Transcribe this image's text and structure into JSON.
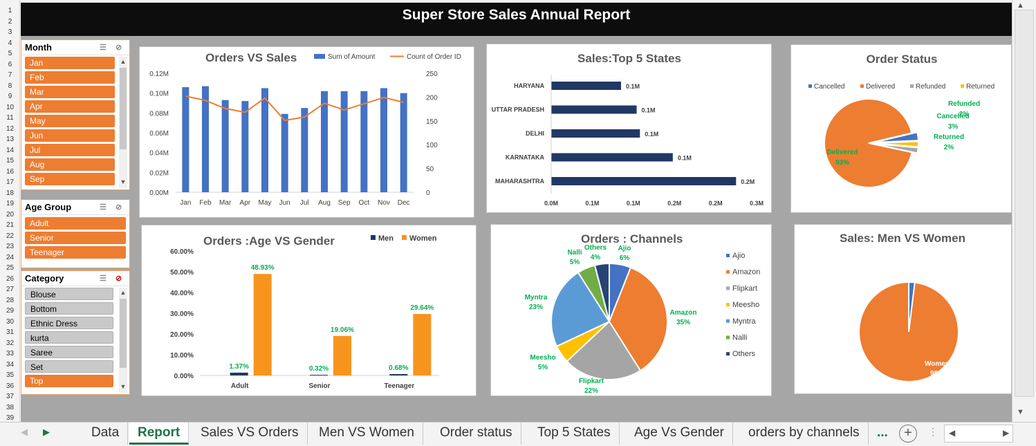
{
  "banner_title": "Super Store Sales Annual Report",
  "row_numbers": [
    "1",
    "2",
    "3",
    "4",
    "5",
    "6",
    "7",
    "8",
    "9",
    "10",
    "11",
    "12",
    "13",
    "14",
    "15",
    "16",
    "17",
    "18",
    "19",
    "20",
    "21",
    "22",
    "23",
    "24",
    "25",
    "26",
    "27",
    "28",
    "29",
    "30",
    "31",
    "32",
    "33",
    "34",
    "35",
    "36",
    "37",
    "38",
    "39"
  ],
  "slicers": {
    "month": {
      "title": "Month",
      "items": [
        "Jan",
        "Feb",
        "Mar",
        "Apr",
        "May",
        "Jun",
        "Jul",
        "Aug",
        "Sep"
      ]
    },
    "age": {
      "title": "Age Group",
      "items": [
        "Adult",
        "Senior",
        "Teenager"
      ]
    },
    "category": {
      "title": "Category",
      "items": [
        "Blouse",
        "Bottom",
        "Ethnic Dress",
        "kurta",
        "Saree",
        "Set",
        "Top"
      ],
      "selected": "Top"
    }
  },
  "tabs": [
    "Data",
    "Report",
    "Sales VS Orders",
    "Men VS Women",
    "Order status",
    "Top 5 States",
    "Age Vs Gender",
    "orders by channels",
    "..."
  ],
  "active_tab": "Report",
  "colors": {
    "orange": "#ed7d31",
    "blue": "#4472c4",
    "navy": "#203864",
    "gold": "#f7941d",
    "green": "#00b050",
    "excel_green": "#217346"
  },
  "chart_data": [
    {
      "id": "orders_vs_sales",
      "type": "bar+line",
      "title": "Orders VS Sales",
      "legend": [
        "Sum of Amount",
        "Count of Order ID"
      ],
      "categories": [
        "Jan",
        "Feb",
        "Mar",
        "Apr",
        "May",
        "Jun",
        "Jul",
        "Aug",
        "Sep",
        "Oct",
        "Nov",
        "Dec"
      ],
      "bar_values": [
        0.106,
        0.107,
        0.093,
        0.092,
        0.105,
        0.079,
        0.085,
        0.102,
        0.102,
        0.102,
        0.105,
        0.1
      ],
      "line_values": [
        202,
        193,
        176,
        168,
        198,
        151,
        158,
        187,
        173,
        186,
        199,
        189
      ],
      "y_left_ticks": [
        "0.00M",
        "0.02M",
        "0.04M",
        "0.06M",
        "0.08M",
        "0.10M",
        "0.12M"
      ],
      "y_right_ticks": [
        "0",
        "50",
        "100",
        "150",
        "200",
        "250"
      ],
      "ylim_left": [
        0,
        0.12
      ],
      "ylim_right": [
        0,
        250
      ]
    },
    {
      "id": "top5_states",
      "type": "hbar",
      "title": "Sales:Top 5 States",
      "categories": [
        "HARYANA",
        "UTTAR PRADESH",
        "DELHI",
        "KARNATAKA",
        "MAHARASHTRA"
      ],
      "values": [
        0.085,
        0.104,
        0.108,
        0.148,
        0.225
      ],
      "labels": [
        "0.1M",
        "0.1M",
        "0.1M",
        "0.1M",
        "0.2M"
      ],
      "x_ticks": [
        "0.0M",
        "0.1M",
        "0.1M",
        "0.2M",
        "0.2M",
        "0.3M"
      ],
      "xlim": [
        0,
        0.25
      ]
    },
    {
      "id": "order_status",
      "type": "pie",
      "title": "Order Status",
      "legend": [
        "Cancelled",
        "Delivered",
        "Refunded",
        "Returned"
      ],
      "slices": [
        {
          "name": "Delivered",
          "value": 93,
          "color": "#ed7d31",
          "label": "Delivered",
          "pct": "93%"
        },
        {
          "name": "Cancelled",
          "value": 3,
          "color": "#4472c4",
          "label": "Cancelled",
          "pct": "3%"
        },
        {
          "name": "Returned",
          "value": 2,
          "color": "#ffc000",
          "label": "Returned",
          "pct": "2%"
        },
        {
          "name": "Refunded",
          "value": 2,
          "color": "#a5a5a5",
          "label": "Refunded",
          "pct": "2%"
        }
      ]
    },
    {
      "id": "age_vs_gender",
      "type": "bar",
      "title": "Orders :Age VS Gender",
      "legend": [
        "Men",
        "Women"
      ],
      "categories": [
        "Adult",
        "Senior",
        "Teenager"
      ],
      "series": [
        {
          "name": "Men",
          "values": [
            1.37,
            0.32,
            0.68
          ],
          "labels": [
            "1.37%",
            "0.32%",
            "0.68%"
          ]
        },
        {
          "name": "Women",
          "values": [
            48.93,
            19.06,
            29.64
          ],
          "labels": [
            "48.93%",
            "19.06%",
            "29.64%"
          ]
        }
      ],
      "y_ticks": [
        "0.00%",
        "10.00%",
        "20.00%",
        "30.00%",
        "40.00%",
        "50.00%",
        "60.00%"
      ],
      "ylim": [
        0,
        60
      ]
    },
    {
      "id": "channels",
      "type": "pie",
      "title": "Orders : Channels",
      "legend": [
        "Ajio",
        "Amazon",
        "Flipkart",
        "Meesho",
        "Myntra",
        "Nalli",
        "Others"
      ],
      "slices": [
        {
          "name": "Ajio",
          "value": 6,
          "color": "#4472c4",
          "label": "Ajio",
          "pct": "6%"
        },
        {
          "name": "Amazon",
          "value": 35,
          "color": "#ed7d31",
          "label": "Amazon",
          "pct": "35%"
        },
        {
          "name": "Flipkart",
          "value": 22,
          "color": "#a5a5a5",
          "label": "Flipkart",
          "pct": "22%"
        },
        {
          "name": "Meesho",
          "value": 5,
          "color": "#ffc000",
          "label": "Meesho",
          "pct": "5%"
        },
        {
          "name": "Myntra",
          "value": 23,
          "color": "#5b9bd5",
          "label": "Myntra",
          "pct": "23%"
        },
        {
          "name": "Nalli",
          "value": 5,
          "color": "#70ad47",
          "label": "Nalli",
          "pct": "5%"
        },
        {
          "name": "Others",
          "value": 4,
          "color": "#264478",
          "label": "Others",
          "pct": "4%"
        }
      ]
    },
    {
      "id": "men_vs_women",
      "type": "pie",
      "title": "Sales: Men VS Women",
      "slices": [
        {
          "name": "Women",
          "value": 98,
          "color": "#ed7d31",
          "label": "Women",
          "pct": "98%"
        },
        {
          "name": "Men",
          "value": 2,
          "color": "#4472c4",
          "label": "",
          "pct": "%"
        }
      ]
    }
  ]
}
